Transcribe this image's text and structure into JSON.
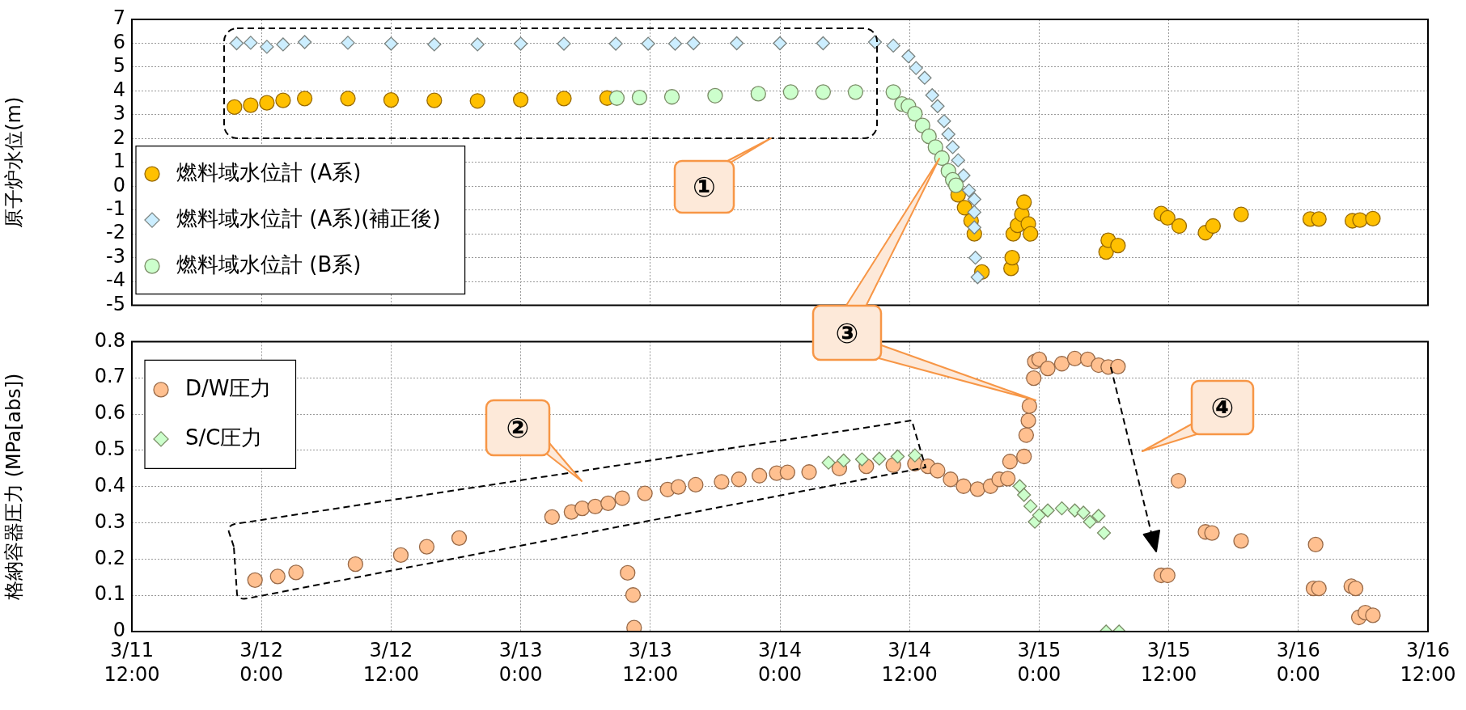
{
  "chart_data": [
    {
      "type": "scatter",
      "ylabel": "原子炉水位(m)",
      "xlim": [
        "--03-11T12:00",
        "--03-16T12:00"
      ],
      "xticks": [
        {
          "value": "--03-11T12:00",
          "label": "3/11\n12:00"
        },
        {
          "value": "--03-12T00:00",
          "label": "3/12\n0:00"
        },
        {
          "value": "--03-12T12:00",
          "label": "3/12\n12:00"
        },
        {
          "value": "--03-13T00:00",
          "label": "3/13\n0:00"
        },
        {
          "value": "--03-13T12:00",
          "label": "3/13\n12:00"
        },
        {
          "value": "--03-14T00:00",
          "label": "3/14\n0:00"
        },
        {
          "value": "--03-14T12:00",
          "label": "3/14\n12:00"
        },
        {
          "value": "--03-15T00:00",
          "label": "3/15\n0:00"
        },
        {
          "value": "--03-15T12:00",
          "label": "3/15\n12:00"
        },
        {
          "value": "--03-16T00:00",
          "label": "3/16\n0:00"
        },
        {
          "value": "--03-16T12:00",
          "label": "3/16\n12:00"
        }
      ],
      "ylim": [
        -5,
        7
      ],
      "yticks": [
        -5,
        -4,
        -3,
        -2,
        -1,
        0,
        1,
        2,
        3,
        4,
        5,
        6,
        7
      ],
      "grid": true,
      "legend": "bottom left",
      "tick_labels": "y",
      "annotations": [
        "①"
      ],
      "series": [
        {
          "name": "燃料域水位計 (A系)",
          "color": "#ffc000",
          "marker": "circle",
          "x": [
            "--03-11T21:30",
            "--03-11T23:00",
            "--03-12T00:30",
            "--03-12T02:00",
            "--03-12T04:00",
            "--03-12T08:00",
            "--03-12T12:00",
            "--03-12T16:00",
            "--03-12T20:00",
            "--03-13T00:00",
            "--03-13T04:00",
            "--03-13T08:00",
            "--03-14T16:30",
            "--03-14T17:06",
            "--03-14T17:42",
            "--03-14T18:00",
            "--03-14T18:42",
            "--03-14T21:24",
            "--03-14T21:30",
            "--03-14T21:36",
            "--03-14T22:00",
            "--03-14T22:24",
            "--03-14T22:36",
            "--03-14T23:00",
            "--03-14T23:12",
            "--03-15T06:12",
            "--03-15T06:24",
            "--03-15T07:18",
            "--03-15T11:18",
            "--03-15T11:54",
            "--03-15T12:58",
            "--03-15T15:24",
            "--03-15T16:06",
            "--03-15T18:42",
            "--03-16T01:06",
            "--03-16T01:54",
            "--03-16T05:00",
            "--03-16T05:42",
            "--03-16T06:54"
          ],
          "values": [
            3.32,
            3.4,
            3.5,
            3.6,
            3.68,
            3.68,
            3.62,
            3.6,
            3.58,
            3.63,
            3.68,
            3.7,
            -0.36,
            -0.9,
            -1.45,
            -2.0,
            -3.6,
            -3.45,
            -3.0,
            -2.0,
            -1.64,
            -1.18,
            -0.67,
            -1.58,
            -2.0,
            -2.76,
            -2.27,
            -2.49,
            -1.15,
            -1.33,
            -1.67,
            -1.95,
            -1.67,
            -1.18,
            -1.38,
            -1.38,
            -1.45,
            -1.42,
            -1.36
          ]
        },
        {
          "name": "燃料域水位計 (A系)(補正後)",
          "color": "#cceeff",
          "marker": "diamond",
          "x": [
            "--03-11T21:42",
            "--03-11T23:00",
            "--03-12T00:30",
            "--03-12T02:00",
            "--03-12T04:00",
            "--03-12T08:00",
            "--03-12T12:00",
            "--03-12T16:00",
            "--03-12T20:00",
            "--03-13T00:00",
            "--03-13T04:00",
            "--03-13T08:48",
            "--03-13T11:48",
            "--03-13T14:18",
            "--03-13T16:00",
            "--03-13T20:00",
            "--03-14T00:00",
            "--03-14T04:00",
            "--03-14T08:48",
            "--03-14T10:30",
            "--03-14T11:54",
            "--03-14T12:36",
            "--03-14T13:24",
            "--03-14T14:06",
            "--03-14T14:36",
            "--03-14T15:12",
            "--03-14T15:36",
            "--03-14T16:00",
            "--03-14T16:30",
            "--03-14T17:00",
            "--03-14T17:30",
            "--03-14T18:00",
            "--03-14T18:00",
            "--03-14T18:00",
            "--03-14T18:06",
            "--03-14T18:18"
          ],
          "values": [
            6.0,
            6.02,
            5.85,
            5.95,
            6.05,
            6.02,
            5.98,
            5.95,
            5.95,
            5.98,
            5.98,
            5.98,
            5.98,
            5.98,
            6.0,
            6.0,
            6.0,
            6.0,
            6.05,
            5.9,
            5.45,
            4.96,
            4.55,
            3.82,
            3.36,
            2.73,
            2.18,
            1.64,
            1.09,
            0.45,
            -0.18,
            -0.55,
            -1.09,
            -1.73,
            -3.0,
            -3.82
          ]
        },
        {
          "name": "燃料域水位計 (B系)",
          "color": "#ccffcc",
          "marker": "circle",
          "x": [
            "--03-13T08:54",
            "--03-13T11:00",
            "--03-13T14:00",
            "--03-13T18:00",
            "--03-13T22:00",
            "--03-14T01:00",
            "--03-14T04:00",
            "--03-14T07:00",
            "--03-14T10:30",
            "--03-14T11:18",
            "--03-14T11:54",
            "--03-14T12:30",
            "--03-14T13:12",
            "--03-14T13:48",
            "--03-14T14:24",
            "--03-14T15:00",
            "--03-14T15:36",
            "--03-14T16:00",
            "--03-14T16:18"
          ],
          "values": [
            3.7,
            3.72,
            3.75,
            3.8,
            3.88,
            3.95,
            3.95,
            3.95,
            3.95,
            3.45,
            3.36,
            3.04,
            2.55,
            2.09,
            1.64,
            1.18,
            0.64,
            0.27,
            0.04
          ]
        }
      ]
    },
    {
      "type": "scatter",
      "ylabel": "格納容器圧力 (MPa[abs])",
      "xlim": [
        "--03-11T12:00",
        "--03-16T12:00"
      ],
      "xticks": [
        {
          "value": "--03-11T12:00",
          "label": "3/11\n12:00"
        },
        {
          "value": "--03-12T00:00",
          "label": "3/12\n0:00"
        },
        {
          "value": "--03-12T12:00",
          "label": "3/12\n12:00"
        },
        {
          "value": "--03-13T00:00",
          "label": "3/13\n0:00"
        },
        {
          "value": "--03-13T12:00",
          "label": "3/13\n12:00"
        },
        {
          "value": "--03-14T00:00",
          "label": "3/14\n0:00"
        },
        {
          "value": "--03-14T12:00",
          "label": "3/14\n12:00"
        },
        {
          "value": "--03-15T00:00",
          "label": "3/15\n0:00"
        },
        {
          "value": "--03-15T12:00",
          "label": "3/15\n12:00"
        },
        {
          "value": "--03-16T00:00",
          "label": "3/16\n0:00"
        },
        {
          "value": "--03-16T12:00",
          "label": "3/16\n12:00"
        }
      ],
      "ylim": [
        0,
        0.8
      ],
      "yticks": [
        0,
        0.1,
        0.2,
        0.3,
        0.4,
        0.5,
        0.6,
        0.7,
        0.8
      ],
      "grid": true,
      "legend": "top left",
      "annotations": [
        "②",
        "③",
        "④"
      ],
      "series": [
        {
          "name": "D/W圧力",
          "color": "#ffc090",
          "marker": "circle",
          "x": [
            "--03-11T23:24",
            "--03-12T01:30",
            "--03-12T03:12",
            "--03-12T08:42",
            "--03-12T12:54",
            "--03-12T15:18",
            "--03-12T18:18",
            "--03-13T02:54",
            "--03-13T04:42",
            "--03-13T05:42",
            "--03-13T06:54",
            "--03-13T08:06",
            "--03-13T09:24",
            "--03-13T09:54",
            "--03-13T10:24",
            "--03-13T10:30",
            "--03-13T11:30",
            "--03-13T13:36",
            "--03-13T14:36",
            "--03-13T16:12",
            "--03-13T18:36",
            "--03-13T20:12",
            "--03-13T22:06",
            "--03-13T23:42",
            "--03-14T00:42",
            "--03-14T02:42",
            "--03-14T05:30",
            "--03-14T08:00",
            "--03-14T10:30",
            "--03-14T12:30",
            "--03-14T13:42",
            "--03-14T14:36",
            "--03-14T15:48",
            "--03-14T17:00",
            "--03-14T18:18",
            "--03-14T19:30",
            "--03-14T20:18",
            "--03-14T21:06",
            "--03-14T21:18",
            "--03-14T22:36",
            "--03-14T22:48",
            "--03-14T23:00",
            "--03-14T23:06",
            "--03-14T23:30",
            "--03-14T23:36",
            "--03-15T00:00",
            "--03-15T00:48",
            "--03-15T02:06",
            "--03-15T03:18",
            "--03-15T04:30",
            "--03-15T05:30",
            "--03-15T06:24",
            "--03-15T07:18",
            "--03-15T11:18",
            "--03-15T11:54",
            "--03-15T12:54",
            "--03-15T15:24",
            "--03-15T16:00",
            "--03-15T18:42",
            "--03-16T01:24",
            "--03-16T01:36",
            "--03-16T01:54",
            "--03-16T04:54",
            "--03-16T05:18",
            "--03-16T05:36",
            "--03-16T06:12",
            "--03-16T06:54"
          ],
          "values": [
            0.142,
            0.152,
            0.163,
            0.186,
            0.211,
            0.234,
            0.258,
            0.316,
            0.33,
            0.34,
            0.345,
            0.354,
            0.368,
            0.162,
            0.101,
            0.011,
            0.381,
            0.392,
            0.399,
            0.405,
            0.413,
            0.42,
            0.43,
            0.437,
            0.439,
            0.44,
            0.45,
            0.456,
            0.459,
            0.463,
            0.456,
            0.444,
            0.42,
            0.401,
            0.393,
            0.401,
            0.42,
            0.422,
            0.469,
            0.483,
            0.542,
            0.582,
            0.622,
            0.699,
            0.745,
            0.751,
            0.726,
            0.739,
            0.753,
            0.751,
            0.735,
            0.73,
            0.731,
            0.155,
            0.155,
            0.416,
            0.275,
            0.272,
            0.25,
            0.119,
            0.24,
            0.119,
            0.125,
            0.119,
            0.039,
            0.052,
            0.045
          ]
        },
        {
          "name": "S/C圧力",
          "color": "#ccffcc",
          "marker": "diamond",
          "x": [
            "--03-14T04:30",
            "--03-14T05:54",
            "--03-14T07:36",
            "--03-14T09:12",
            "--03-14T10:54",
            "--03-14T12:30",
            "--03-14T22:12",
            "--03-14T22:36",
            "--03-14T23:12",
            "--03-14T23:36",
            "--03-15T00:00",
            "--03-15T00:48",
            "--03-15T02:06",
            "--03-15T03:18",
            "--03-15T04:06",
            "--03-15T04:42",
            "--03-15T05:30",
            "--03-15T06:00",
            "--03-15T06:12",
            "--03-15T07:24"
          ],
          "values": [
            0.466,
            0.472,
            0.475,
            0.477,
            0.483,
            0.486,
            0.401,
            0.377,
            0.346,
            0.303,
            0.321,
            0.334,
            0.34,
            0.334,
            0.328,
            0.303,
            0.319,
            0.272,
            0,
            0
          ]
        }
      ]
    }
  ]
}
